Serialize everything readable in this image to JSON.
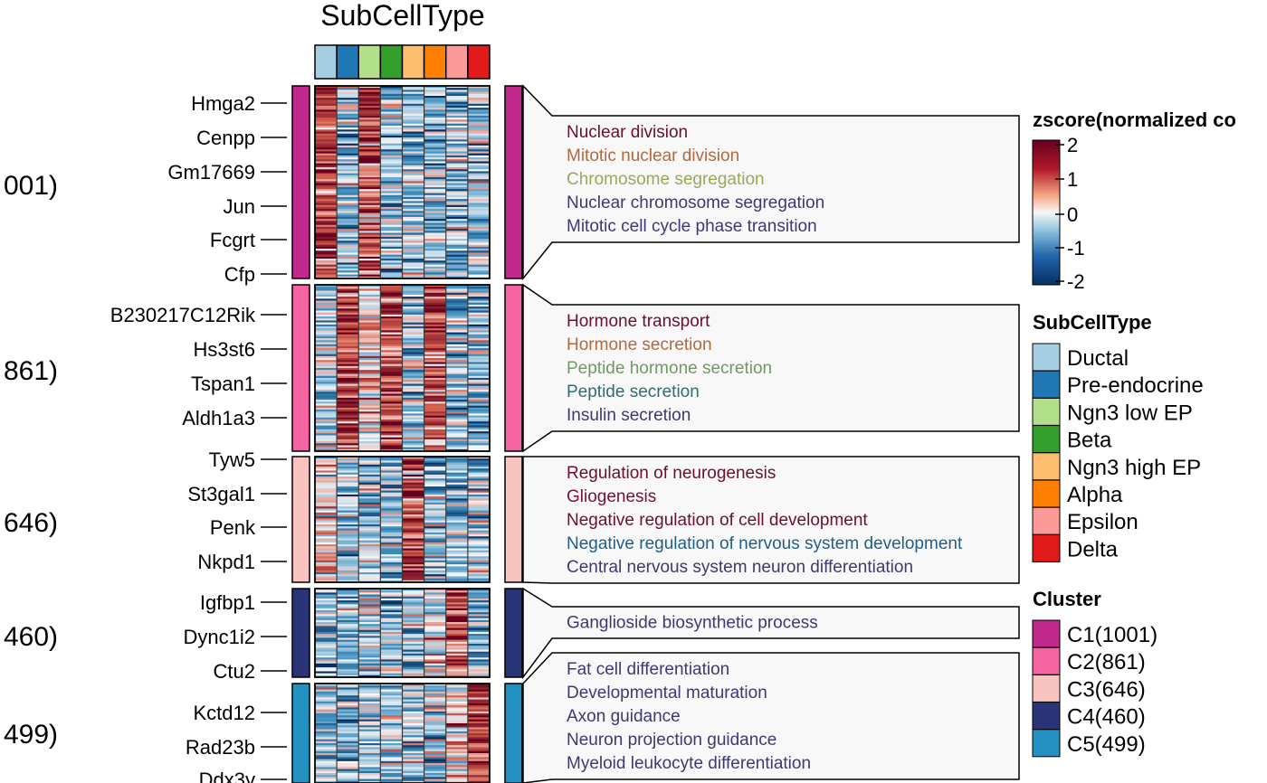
{
  "chart_data": {
    "type": "heatmap",
    "title": "SubCellType",
    "row_labels_by_cluster": [
      [
        "Hmga2",
        "Cenpp",
        "Gm17669",
        "Jun",
        "Fcgrt",
        "Cfp"
      ],
      [
        "B230217C12Rik",
        "Hs3st6",
        "Tspan1",
        "Aldh1a3"
      ],
      [
        "Tyw5",
        "St3gal1",
        "Penk",
        "Nkpd1"
      ],
      [
        "Igfbp1",
        "Dync1i2",
        "Ctu2"
      ],
      [
        "Kctd12",
        "Rad23b",
        "Ddx3y"
      ]
    ],
    "cluster_side_labels": [
      "001)",
      "861)",
      "646)",
      "460)",
      "499)"
    ],
    "columns": [
      "Ductal",
      "Pre-endocrine",
      "Ngn3 low EP",
      "Beta",
      "Ngn3 high EP",
      "Alpha",
      "Epsilon",
      "Delta"
    ],
    "column_colors": [
      "#a6cee3",
      "#1f78b4",
      "#b2df8a",
      "#33a02c",
      "#fdbf6f",
      "#ff7f00",
      "#fb9a99",
      "#e31a1c"
    ],
    "clusters": [
      {
        "name": "C1(1001)",
        "color": "#c0288b",
        "high_columns": [
          0,
          2
        ],
        "mid_columns": []
      },
      {
        "name": "C2(861)",
        "color": "#f564a0",
        "high_columns": [
          1,
          3,
          5
        ],
        "mid_columns": [
          2
        ]
      },
      {
        "name": "C3(646)",
        "color": "#f9c4c0",
        "high_columns": [
          4
        ],
        "mid_columns": [
          0
        ]
      },
      {
        "name": "C4(460)",
        "color": "#2a3577",
        "high_columns": [
          6
        ],
        "mid_columns": [
          5
        ]
      },
      {
        "name": "C5(499)",
        "color": "#2391c2",
        "high_columns": [
          7
        ],
        "mid_columns": [
          6
        ]
      }
    ],
    "enrichment": [
      {
        "terms": [
          {
            "text": "Nuclear division",
            "color": "#6b0f2e"
          },
          {
            "text": "Mitotic nuclear division",
            "color": "#b06a3f"
          },
          {
            "text": "Chromosome segregation",
            "color": "#9aa85a"
          },
          {
            "text": "Nuclear chromosome segregation",
            "color": "#3d3a72"
          },
          {
            "text": "Mitotic cell cycle phase transition",
            "color": "#3d3a72"
          }
        ]
      },
      {
        "terms": [
          {
            "text": "Hormone transport",
            "color": "#6b0f2e"
          },
          {
            "text": "Hormone secretion",
            "color": "#b06a3f"
          },
          {
            "text": "Peptide hormone secretion",
            "color": "#6f9a63"
          },
          {
            "text": "Peptide secretion",
            "color": "#2f6e6e"
          },
          {
            "text": "Insulin secretion",
            "color": "#3d3a72"
          }
        ]
      },
      {
        "terms": [
          {
            "text": "Regulation of neurogenesis",
            "color": "#6b0f2e"
          },
          {
            "text": "Gliogenesis",
            "color": "#7a0f35"
          },
          {
            "text": "Negative regulation of cell development",
            "color": "#6b0f2e"
          },
          {
            "text": "Negative regulation of nervous system development",
            "color": "#1f5f85"
          },
          {
            "text": "Central nervous system neuron differentiation",
            "color": "#3d3a72"
          }
        ]
      },
      {
        "terms": [
          {
            "text": "Ganglioside biosynthetic process",
            "color": "#3d3a72"
          }
        ]
      },
      {
        "terms": [
          {
            "text": "Fat cell differentiation",
            "color": "#3d3a72"
          },
          {
            "text": "Developmental maturation",
            "color": "#3d3a72"
          },
          {
            "text": "Axon guidance",
            "color": "#3d3a72"
          },
          {
            "text": "Neuron projection guidance",
            "color": "#3d3a72"
          },
          {
            "text": "Myeloid leukocyte differentiation",
            "color": "#3d3a72"
          }
        ]
      }
    ],
    "colorbar": {
      "title": "zscore(normalized co",
      "ticks": [
        "2",
        "1",
        "0",
        "-1",
        "-2"
      ],
      "range": [
        -2,
        2
      ],
      "colors": [
        "#67001f",
        "#d6604d",
        "#f7f7f7",
        "#4393c3",
        "#053061"
      ]
    },
    "legend_subcelltype_title": "SubCellType",
    "legend_cluster_title": "Cluster"
  }
}
